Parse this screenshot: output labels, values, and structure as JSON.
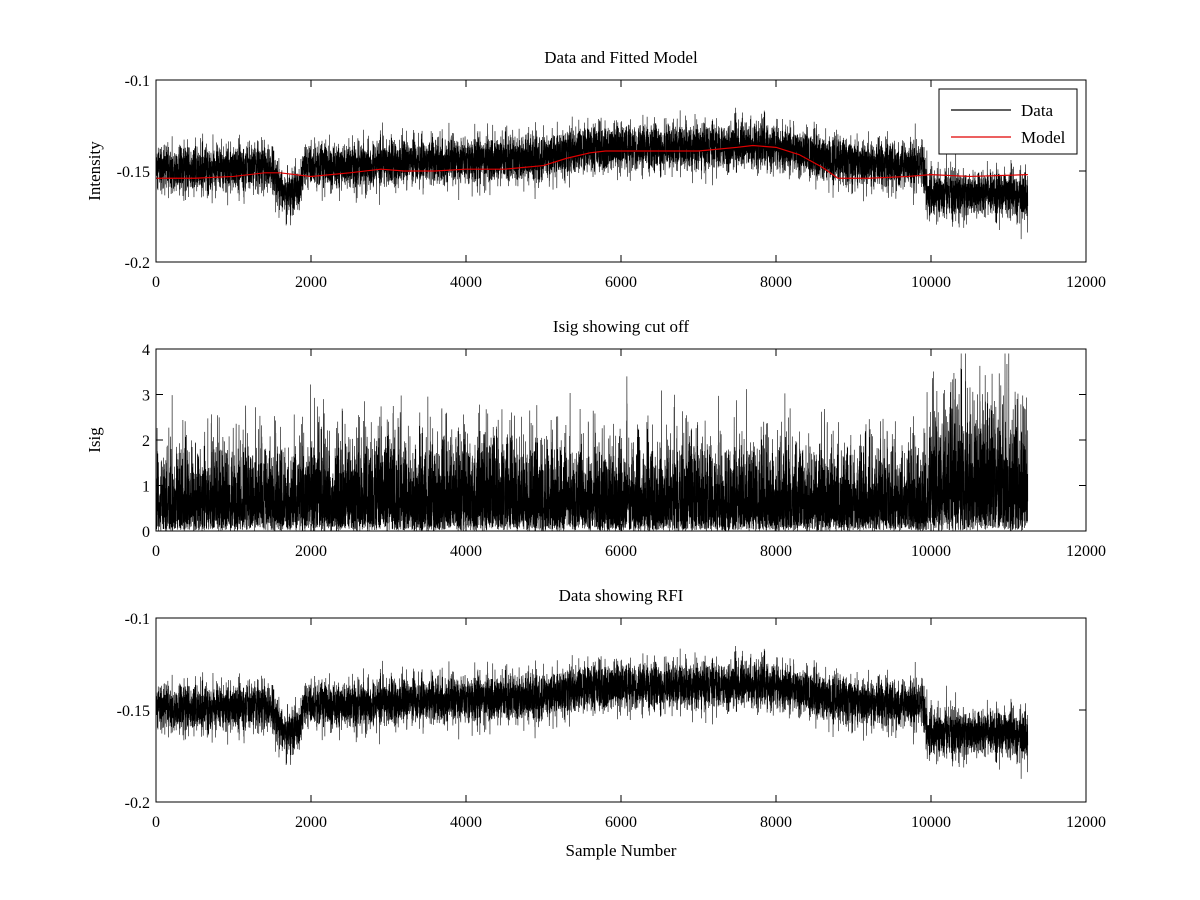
{
  "chart_data": [
    {
      "type": "line",
      "title": "Data and Fitted Model",
      "xlabel": "",
      "ylabel": "Intensity",
      "xlim": [
        0,
        12000
      ],
      "ylim": [
        -0.2,
        -0.1
      ],
      "xticks": [
        0,
        2000,
        4000,
        6000,
        8000,
        10000,
        12000
      ],
      "xtick_labels": [
        "0",
        "2000",
        "4000",
        "6000",
        "8000",
        "10000",
        "12000"
      ],
      "yticks": [
        -0.2,
        -0.15,
        -0.1
      ],
      "ytick_labels": [
        "-0.2",
        "-0.15",
        "-0.1"
      ],
      "grid": false,
      "legend_position": "top-right",
      "series": [
        {
          "name": "Data",
          "color": "#000000",
          "kind": "noisy",
          "n_points": 11250,
          "baseline_x": [
            0,
            1500,
            1650,
            1850,
            1900,
            2800,
            3500,
            5000,
            5500,
            6000,
            7000,
            7700,
            8000,
            8400,
            8800,
            9900,
            9950,
            11250
          ],
          "baseline_y": [
            -0.15,
            -0.148,
            -0.162,
            -0.16,
            -0.148,
            -0.146,
            -0.145,
            -0.143,
            -0.138,
            -0.137,
            -0.137,
            -0.136,
            -0.138,
            -0.14,
            -0.145,
            -0.147,
            -0.162,
            -0.163
          ],
          "noise_std": 0.0065
        },
        {
          "name": "Model",
          "color": "#e00000",
          "kind": "smooth",
          "x": [
            0,
            500,
            1000,
            1400,
            1600,
            2000,
            2500,
            2900,
            3200,
            3600,
            4000,
            4500,
            5000,
            5300,
            5600,
            5800,
            6000,
            6500,
            7000,
            7500,
            7700,
            8000,
            8300,
            8600,
            8800,
            9200,
            9700,
            10000,
            10500,
            11250
          ],
          "y": [
            -0.154,
            -0.154,
            -0.153,
            -0.151,
            -0.151,
            -0.153,
            -0.151,
            -0.149,
            -0.15,
            -0.15,
            -0.149,
            -0.149,
            -0.147,
            -0.143,
            -0.14,
            -0.139,
            -0.139,
            -0.139,
            -0.139,
            -0.137,
            -0.136,
            -0.137,
            -0.141,
            -0.148,
            -0.154,
            -0.154,
            -0.153,
            -0.152,
            -0.153,
            -0.152
          ]
        }
      ]
    },
    {
      "type": "line",
      "title": "Isig showing cut off",
      "xlabel": "",
      "ylabel": "Isig",
      "xlim": [
        0,
        12000
      ],
      "ylim": [
        0,
        4
      ],
      "xticks": [
        0,
        2000,
        4000,
        6000,
        8000,
        10000,
        12000
      ],
      "xtick_labels": [
        "0",
        "2000",
        "4000",
        "6000",
        "8000",
        "10000",
        "12000"
      ],
      "yticks": [
        0,
        1,
        2,
        3,
        4
      ],
      "ytick_labels": [
        "0",
        "1",
        "2",
        "3",
        "4"
      ],
      "grid": false,
      "series": [
        {
          "name": "Isig",
          "color": "#000000",
          "kind": "halfnormal",
          "n_points": 11250,
          "scale_x": [
            0,
            1700,
            2000,
            9900,
            10000,
            11250
          ],
          "scale_y": [
            0.85,
            0.9,
            1.0,
            0.85,
            1.25,
            1.4
          ],
          "max_value": 3.9
        }
      ]
    },
    {
      "type": "line",
      "title": "Data showing RFI",
      "xlabel": "Sample Number",
      "ylabel": "",
      "xlim": [
        0,
        12000
      ],
      "ylim": [
        -0.2,
        -0.1
      ],
      "xticks": [
        0,
        2000,
        4000,
        6000,
        8000,
        10000,
        12000
      ],
      "xtick_labels": [
        "0",
        "2000",
        "4000",
        "6000",
        "8000",
        "10000",
        "12000"
      ],
      "yticks": [
        -0.2,
        -0.15,
        -0.1
      ],
      "ytick_labels": [
        "-0.2",
        "-0.15",
        "-0.1"
      ],
      "grid": false,
      "series": [
        {
          "name": "Data",
          "color": "#000000",
          "kind": "noisy",
          "n_points": 11250,
          "baseline_x": [
            0,
            1500,
            1650,
            1850,
            1900,
            2800,
            3500,
            5000,
            5500,
            6000,
            7000,
            7700,
            8000,
            8400,
            8800,
            9900,
            9950,
            11250
          ],
          "baseline_y": [
            -0.15,
            -0.148,
            -0.162,
            -0.16,
            -0.148,
            -0.146,
            -0.145,
            -0.143,
            -0.138,
            -0.137,
            -0.137,
            -0.136,
            -0.138,
            -0.14,
            -0.145,
            -0.147,
            -0.162,
            -0.163
          ],
          "noise_std": 0.0065
        }
      ]
    }
  ]
}
